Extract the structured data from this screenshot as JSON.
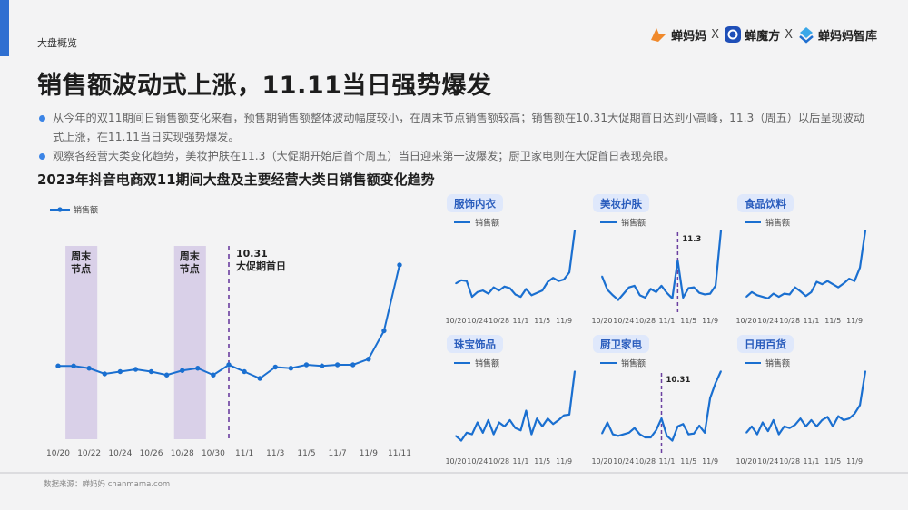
{
  "header": {
    "section": "大盘概览",
    "brands": [
      "蝉妈妈",
      "蝉魔方",
      "蝉妈妈智库"
    ],
    "separator": "X"
  },
  "title": "销售额波动式上涨，11.11当日强势爆发",
  "bullets": [
    "从今年的双11期间日销售额变化来看，预售期销售额整体波动幅度较小，在周末节点销售额较高；销售额在10.31大促期首日达到小高峰，11.3（周五）以后呈现波动式上涨，在11.11当日实现强势爆发。",
    "观察各经营大类变化趋势，美妆护肤在11.3（大促期开始后首个周五）当日迎来第一波爆发；厨卫家电则在大促首日表现亮眼。"
  ],
  "chart_title": "2023年抖音电商双11期间大盘及主要经营大类日销售额变化趋势",
  "source": "数据来源：蝉妈妈 chanmama.com",
  "colors": {
    "line": "#1a6fd0",
    "weekend_band": "#d9d0e8",
    "dashed": "#6b3fa0",
    "tag_bg": "#dfe8fb",
    "tag_text": "#2a5dbd"
  },
  "chart_data": [
    {
      "type": "line",
      "series": [
        {
          "name": "销售额",
          "x": [
            "10/20",
            "10/21",
            "10/22",
            "10/23",
            "10/24",
            "10/25",
            "10/26",
            "10/27",
            "10/28",
            "10/29",
            "10/30",
            "10/31",
            "11/1",
            "11/2",
            "11/3",
            "11/4",
            "11/5",
            "11/6",
            "11/7",
            "11/8",
            "11/9",
            "11/10",
            "11/11"
          ],
          "values": [
            31.5,
            31.5,
            30.5,
            28,
            29,
            30,
            29,
            27.5,
            29.5,
            30.5,
            27.5,
            32,
            29,
            26,
            31,
            30.5,
            32,
            31.5,
            32,
            32,
            34.5,
            47,
            76
          ]
        }
      ],
      "xticks": [
        "10/20",
        "10/22",
        "10/24",
        "10/26",
        "10/28",
        "10/30",
        "11/1",
        "11/3",
        "11/5",
        "11/7",
        "11/9",
        "11/11"
      ],
      "bands": [
        {
          "label": "周末\n节点",
          "from": "10/21",
          "to": "10/22"
        },
        {
          "label": "周末\n节点",
          "from": "10/28",
          "to": "10/29"
        }
      ],
      "annotation": {
        "x": "10/31",
        "text": [
          "10.31",
          "大促期首日"
        ]
      },
      "ylim": [
        0,
        100
      ]
    },
    {
      "type": "line",
      "title": "服饰内衣",
      "series": [
        {
          "name": "销售额",
          "x": [
            "10/20",
            "10/21",
            "10/22",
            "10/23",
            "10/24",
            "10/25",
            "10/26",
            "10/27",
            "10/28",
            "10/29",
            "10/30",
            "10/31",
            "11/1",
            "11/2",
            "11/3",
            "11/4",
            "11/5",
            "11/6",
            "11/7",
            "11/8",
            "11/9",
            "11/10",
            "11/11"
          ],
          "values": [
            33,
            37,
            36,
            16,
            22,
            24,
            20,
            28,
            24,
            29,
            27,
            19,
            16,
            26,
            18,
            21,
            24,
            35,
            40,
            36,
            38,
            47,
            100
          ]
        }
      ],
      "xticks": [
        "10/20",
        "10/24",
        "10/28",
        "11/1",
        "11/5",
        "11/9"
      ]
    },
    {
      "type": "line",
      "title": "美妆护肤",
      "series": [
        {
          "name": "销售额",
          "x": [
            "10/20",
            "10/21",
            "10/22",
            "10/23",
            "10/24",
            "10/25",
            "10/26",
            "10/27",
            "10/28",
            "10/29",
            "10/30",
            "10/31",
            "11/1",
            "11/2",
            "11/3",
            "11/4",
            "11/5",
            "11/6",
            "11/7",
            "11/8",
            "11/9",
            "11/10",
            "11/11"
          ],
          "values": [
            42,
            25,
            18,
            12,
            20,
            28,
            30,
            18,
            15,
            26,
            22,
            30,
            21,
            14,
            62,
            15,
            27,
            28,
            21,
            19,
            20,
            30,
            100
          ]
        }
      ],
      "xticks": [
        "10/20",
        "10/24",
        "10/28",
        "11/1",
        "11/5",
        "11/9"
      ],
      "annotation": {
        "x": "11/3",
        "text": [
          "11.3"
        ]
      }
    },
    {
      "type": "line",
      "title": "食品饮料",
      "series": [
        {
          "name": "销售额",
          "x": [
            "10/20",
            "10/21",
            "10/22",
            "10/23",
            "10/24",
            "10/25",
            "10/26",
            "10/27",
            "10/28",
            "10/29",
            "10/30",
            "10/31",
            "11/1",
            "11/2",
            "11/3",
            "11/4",
            "11/5",
            "11/6",
            "11/7",
            "11/8",
            "11/9",
            "11/10",
            "11/11"
          ],
          "values": [
            16,
            22,
            18,
            16,
            14,
            20,
            16,
            20,
            19,
            28,
            23,
            17,
            22,
            35,
            32,
            36,
            32,
            28,
            33,
            39,
            36,
            53,
            100
          ]
        }
      ],
      "xticks": [
        "10/20",
        "10/24",
        "10/28",
        "11/1",
        "11/5",
        "11/9"
      ]
    },
    {
      "type": "line",
      "title": "珠宝饰品",
      "series": [
        {
          "name": "销售额",
          "x": [
            "10/20",
            "10/21",
            "10/22",
            "10/23",
            "10/24",
            "10/25",
            "10/26",
            "10/27",
            "10/28",
            "10/29",
            "10/30",
            "10/31",
            "11/1",
            "11/2",
            "11/3",
            "11/4",
            "11/5",
            "11/6",
            "11/7",
            "11/8",
            "11/9",
            "11/10",
            "11/11"
          ],
          "values": [
            18,
            12,
            22,
            20,
            35,
            22,
            38,
            20,
            35,
            30,
            38,
            28,
            25,
            50,
            20,
            40,
            30,
            40,
            33,
            38,
            44,
            45,
            100
          ]
        }
      ],
      "xticks": [
        "10/20",
        "10/24",
        "10/28",
        "11/1",
        "11/5",
        "11/9"
      ]
    },
    {
      "type": "line",
      "title": "厨卫家电",
      "series": [
        {
          "name": "销售额",
          "x": [
            "10/20",
            "10/21",
            "10/22",
            "10/23",
            "10/24",
            "10/25",
            "10/26",
            "10/27",
            "10/28",
            "10/29",
            "10/30",
            "10/31",
            "11/1",
            "11/2",
            "11/3",
            "11/4",
            "11/5",
            "11/6",
            "11/7",
            "11/8",
            "11/9",
            "11/10",
            "11/11"
          ],
          "values": [
            21,
            35,
            20,
            18,
            20,
            22,
            28,
            20,
            16,
            16,
            25,
            40,
            18,
            12,
            30,
            33,
            20,
            21,
            31,
            22,
            66,
            85,
            100
          ]
        }
      ],
      "xticks": [
        "10/20",
        "10/24",
        "10/28",
        "11/1",
        "11/5",
        "11/9"
      ],
      "annotation": {
        "x": "10/31",
        "text": [
          "10.31"
        ]
      }
    },
    {
      "type": "line",
      "title": "日用百货",
      "series": [
        {
          "name": "销售额",
          "x": [
            "10/20",
            "10/21",
            "10/22",
            "10/23",
            "10/24",
            "10/25",
            "10/26",
            "10/27",
            "10/28",
            "10/29",
            "10/30",
            "10/31",
            "11/1",
            "11/2",
            "11/3",
            "11/4",
            "11/5",
            "11/6",
            "11/7",
            "11/8",
            "11/9",
            "11/10",
            "11/11"
          ],
          "values": [
            22,
            30,
            20,
            35,
            24,
            38,
            20,
            30,
            28,
            32,
            40,
            30,
            38,
            30,
            38,
            42,
            30,
            43,
            38,
            40,
            46,
            57,
            100
          ]
        }
      ],
      "xticks": [
        "10/20",
        "10/24",
        "10/28",
        "11/1",
        "11/5",
        "11/9"
      ]
    }
  ]
}
